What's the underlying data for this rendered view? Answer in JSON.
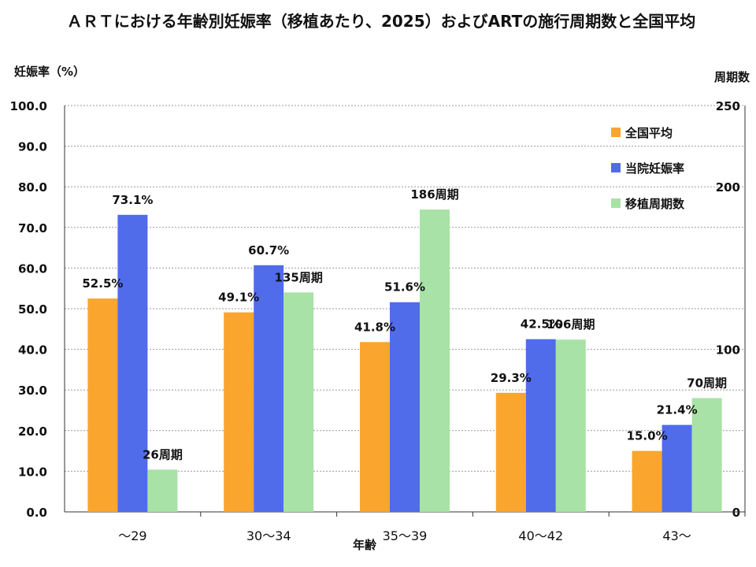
{
  "chart_data": {
    "type": "bar",
    "title": "ＡＲＴにおける年齢別妊娠率（移植あたり、2025）およびARTの施行周期数と全国平均",
    "xlabel": "年齢",
    "ylabel": "妊娠率（%）",
    "y2label": "周期数",
    "categories": [
      "～29",
      "30～34",
      "35～39",
      "40～42",
      "43～"
    ],
    "ylim": [
      0,
      100
    ],
    "yticks": [
      "100.0",
      "90.0",
      "80.0",
      "70.0",
      "60.0",
      "50.0",
      "40.0",
      "30.0",
      "20.0",
      "10.0",
      "0.0"
    ],
    "y2lim": [
      0,
      250
    ],
    "y2ticks": [
      "250",
      "200",
      "100",
      "0"
    ],
    "grid": true,
    "legend_position": "top-right",
    "series": [
      {
        "name": "全国平均",
        "axis": "left",
        "color": "#F9A52E",
        "values": [
          52.5,
          49.1,
          41.8,
          29.3,
          15.0
        ],
        "labels": [
          "52.5%",
          "49.1%",
          "41.8%",
          "29.3%",
          "15.0%"
        ]
      },
      {
        "name": "当院妊娠率",
        "axis": "left",
        "color": "#506CEB",
        "values": [
          73.1,
          60.7,
          51.6,
          42.5,
          21.4
        ],
        "labels": [
          "73.1%",
          "60.7%",
          "51.6%",
          "42.5%",
          "21.4%"
        ]
      },
      {
        "name": "移植周期数",
        "axis": "right",
        "color": "#A8E2A6",
        "values": [
          26,
          135,
          186,
          106,
          70
        ],
        "labels": [
          "26周期",
          "135周期",
          "186周期",
          "106周期",
          "70周期"
        ]
      }
    ]
  }
}
